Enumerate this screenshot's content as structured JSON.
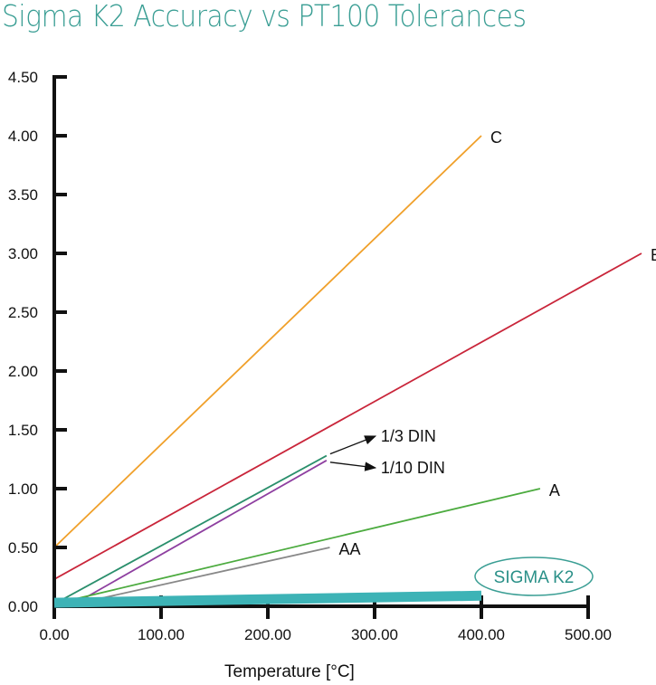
{
  "chart_data": {
    "type": "line",
    "title": "Sigma K2 Accuracy vs PT100 Tolerances",
    "xlabel": "Temperature [°C]",
    "ylabel": "",
    "xlim": [
      0,
      500
    ],
    "ylim": [
      0,
      4.5
    ],
    "xticks": [
      "0.00",
      "100.00",
      "200.00",
      "300.00",
      "400.00",
      "500.00"
    ],
    "xtick_values": [
      0,
      100,
      200,
      300,
      400,
      500
    ],
    "yticks": [
      "0.00",
      "0.50",
      "1.00",
      "1.50",
      "2.00",
      "2.50",
      "3.00",
      "3.50",
      "4.00",
      "4.50"
    ],
    "ytick_values": [
      0,
      0.5,
      1,
      1.5,
      2,
      2.5,
      3,
      3.5,
      4,
      4.5
    ],
    "grid": false,
    "series": [
      {
        "name": "C",
        "color": "#f0a02a",
        "x": [
          0,
          400
        ],
        "y": [
          0.5,
          4.0
        ],
        "width": 1.8
      },
      {
        "name": "B",
        "color": "#c9253a",
        "x": [
          0,
          550
        ],
        "y": [
          0.23,
          3.0
        ],
        "width": 1.8
      },
      {
        "name": "1/3 DIN",
        "color": "#2a8f6c",
        "x": [
          0,
          255
        ],
        "y": [
          0.02,
          1.28
        ],
        "width": 1.8,
        "arrow": true
      },
      {
        "name": "1/10 DIN",
        "color": "#8e3fa0",
        "x": [
          15,
          255
        ],
        "y": [
          0.0,
          1.24
        ],
        "width": 1.8,
        "arrow": true
      },
      {
        "name": "A",
        "color": "#4cab3f",
        "x": [
          0,
          455
        ],
        "y": [
          0.02,
          1.0
        ],
        "width": 1.8
      },
      {
        "name": "AA",
        "color": "#888888",
        "x": [
          20,
          258
        ],
        "y": [
          0.02,
          0.5
        ],
        "width": 1.8
      },
      {
        "name": "SIGMA K2",
        "color": "#3db3b6",
        "x": [
          0,
          400
        ],
        "y": [
          0.03,
          0.09
        ],
        "width": 11,
        "badge": true
      }
    ]
  }
}
